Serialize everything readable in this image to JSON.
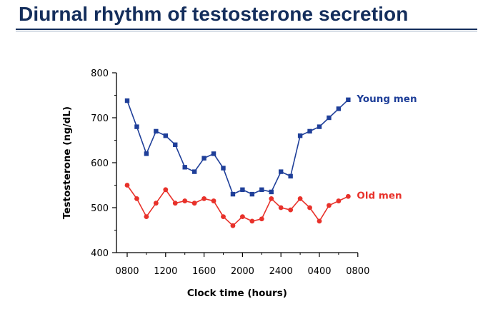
{
  "slide": {
    "title": "Diurnal rhythm of testosterone secretion"
  },
  "chart_data": {
    "type": "line",
    "title": "",
    "xlabel": "Clock time (hours)",
    "ylabel": "Testosterone (ng/dL)",
    "x_tick_labels": [
      "0800",
      "1200",
      "1600",
      "2000",
      "2400",
      "0400",
      "0800"
    ],
    "x_tick_hours_elapsed": [
      0,
      4,
      8,
      12,
      16,
      20,
      24
    ],
    "ylim": [
      400,
      800
    ],
    "y_ticks": [
      400,
      500,
      600,
      700,
      800
    ],
    "grid": false,
    "legend": "inline labels at line ends",
    "series": [
      {
        "name": "Young men",
        "color": "#1f3f99",
        "marker": "square",
        "x": [
          0,
          1,
          2,
          3,
          4,
          5,
          6,
          7,
          8,
          9,
          10,
          11,
          12,
          13,
          14,
          15,
          16,
          17,
          18,
          19,
          20,
          21,
          22,
          23
        ],
        "values": [
          738,
          680,
          620,
          670,
          660,
          640,
          590,
          580,
          610,
          620,
          588,
          530,
          540,
          530,
          540,
          535,
          580,
          570,
          660,
          670,
          680,
          700,
          720,
          740
        ]
      },
      {
        "name": "Old men",
        "color": "#e8312a",
        "marker": "circle",
        "x": [
          0,
          1,
          2,
          3,
          4,
          5,
          6,
          7,
          8,
          9,
          10,
          11,
          12,
          13,
          14,
          15,
          16,
          17,
          18,
          19,
          20,
          21,
          22,
          23
        ],
        "values": [
          550,
          520,
          480,
          510,
          540,
          510,
          515,
          510,
          520,
          515,
          480,
          460,
          480,
          470,
          475,
          520,
          500,
          495,
          520,
          500,
          470,
          505,
          515,
          525
        ]
      }
    ]
  }
}
